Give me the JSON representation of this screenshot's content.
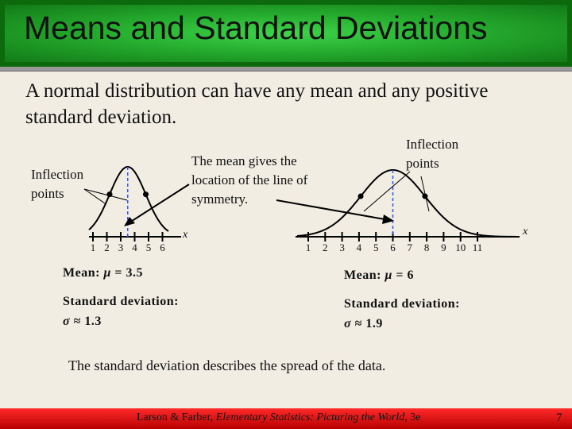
{
  "title": "Means and Standard Deviations",
  "intro": "A normal distribution can have any mean and any positive standard deviation.",
  "labels": {
    "inflection_left": "Inflection points",
    "mean_location": "The mean gives the location of the line of symmetry.",
    "inflection_right": "Inflection points",
    "axis_variable": "x"
  },
  "left_curve": {
    "ticks": [
      "1",
      "2",
      "3",
      "4",
      "5",
      "6"
    ],
    "mean_label": "Mean: ",
    "mean_symbol": "μ",
    "mean_value": " = 3.5",
    "sd_label": "Standard deviation:",
    "sd_symbol": "σ",
    "sd_value": " ≈ 1.3"
  },
  "right_curve": {
    "ticks": [
      "1",
      "2",
      "3",
      "4",
      "5",
      "6",
      "7",
      "8",
      "9",
      "10",
      "11"
    ],
    "mean_label": "Mean: ",
    "mean_symbol": "μ",
    "mean_value": " = 6",
    "sd_label": "Standard deviation:",
    "sd_symbol": "σ",
    "sd_value": " ≈ 1.9"
  },
  "conclusion": "The standard deviation describes the spread of the data.",
  "footer": {
    "authors": "Larson & Farber, ",
    "book": "Elementary Statistics: Picturing the World",
    "edition": ", 3e",
    "page": "7"
  },
  "colors": {
    "title_green": "#26ad2f",
    "title_border": "#0c6a0c",
    "mean_line": "#3b5bd6",
    "footer_red": "#e00000",
    "background": "#f1ede3"
  }
}
